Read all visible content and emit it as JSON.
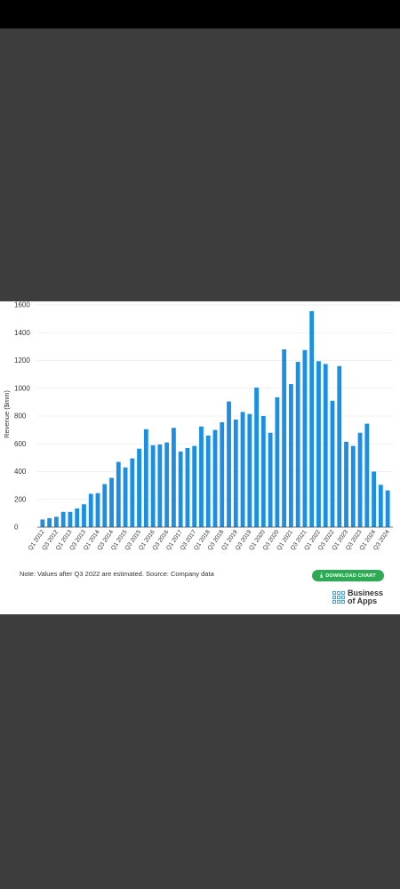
{
  "chart_data": {
    "type": "bar",
    "xlabel": "",
    "ylabel": "Revenue ($mm)",
    "ylim": [
      0,
      1600
    ],
    "yticks": [
      0,
      200,
      400,
      600,
      800,
      1000,
      1200,
      1400,
      1600
    ],
    "grid": true,
    "bar_color": "#1a8fe3",
    "categories": [
      "Q1 2012",
      "Q2 2012",
      "Q3 2012",
      "Q4 2012",
      "Q1 2013",
      "Q2 2013",
      "Q3 2013",
      "Q4 2013",
      "Q1 2014",
      "Q2 2014",
      "Q3 2014",
      "Q4 2014",
      "Q1 2015",
      "Q2 2015",
      "Q3 2015",
      "Q4 2015",
      "Q1 2016",
      "Q2 2016",
      "Q3 2016",
      "Q4 2016",
      "Q1 2017",
      "Q2 2017",
      "Q3 2017",
      "Q4 2017",
      "Q1 2018",
      "Q2 2018",
      "Q3 2018",
      "Q4 2018",
      "Q1 2019",
      "Q2 2019",
      "Q3 2019",
      "Q4 2019",
      "Q1 2020",
      "Q2 2020",
      "Q3 2020",
      "Q4 2020",
      "Q1 2021",
      "Q2 2021",
      "Q3 2021",
      "Q4 2021",
      "Q1 2022",
      "Q2 2022",
      "Q3 2022",
      "Q4 2022",
      "Q1 2023",
      "Q2 2023",
      "Q3 2023",
      "Q4 2023",
      "Q1 2024",
      "Q2 2024",
      "Q3 2024"
    ],
    "xtick_labels": [
      "Q1 2012",
      "Q3 2012",
      "Q1 2013",
      "Q3 2013",
      "Q1 2014",
      "Q3 2014",
      "Q1 2015",
      "Q3 2015",
      "Q1 2016",
      "Q3 2016",
      "Q1 2017",
      "Q3 2017",
      "Q1 2018",
      "Q3 2018",
      "Q1 2019",
      "Q3 2019",
      "Q1 2020",
      "Q3 2020",
      "Q1 2021",
      "Q3 2021",
      "Q1 2022",
      "Q3 2022",
      "Q1 2023",
      "Q3 2023",
      "Q1 2024",
      "Q3 2024"
    ],
    "values": [
      55,
      65,
      75,
      110,
      110,
      135,
      165,
      240,
      245,
      310,
      355,
      470,
      430,
      495,
      565,
      705,
      590,
      595,
      610,
      715,
      545,
      570,
      585,
      725,
      660,
      700,
      755,
      905,
      775,
      830,
      815,
      1005,
      800,
      680,
      935,
      1280,
      1030,
      1190,
      1275,
      1555,
      1195,
      1175,
      910,
      1160,
      615,
      585,
      680,
      745,
      400,
      305,
      265
    ]
  },
  "footer": {
    "note": "Note: Values after Q3 2022 are estimated. Source: Company data",
    "download_label": "DOWNLOAD CHART",
    "download_icon": "download-icon",
    "logo_line1": "Business",
    "logo_line2": "of Apps"
  }
}
